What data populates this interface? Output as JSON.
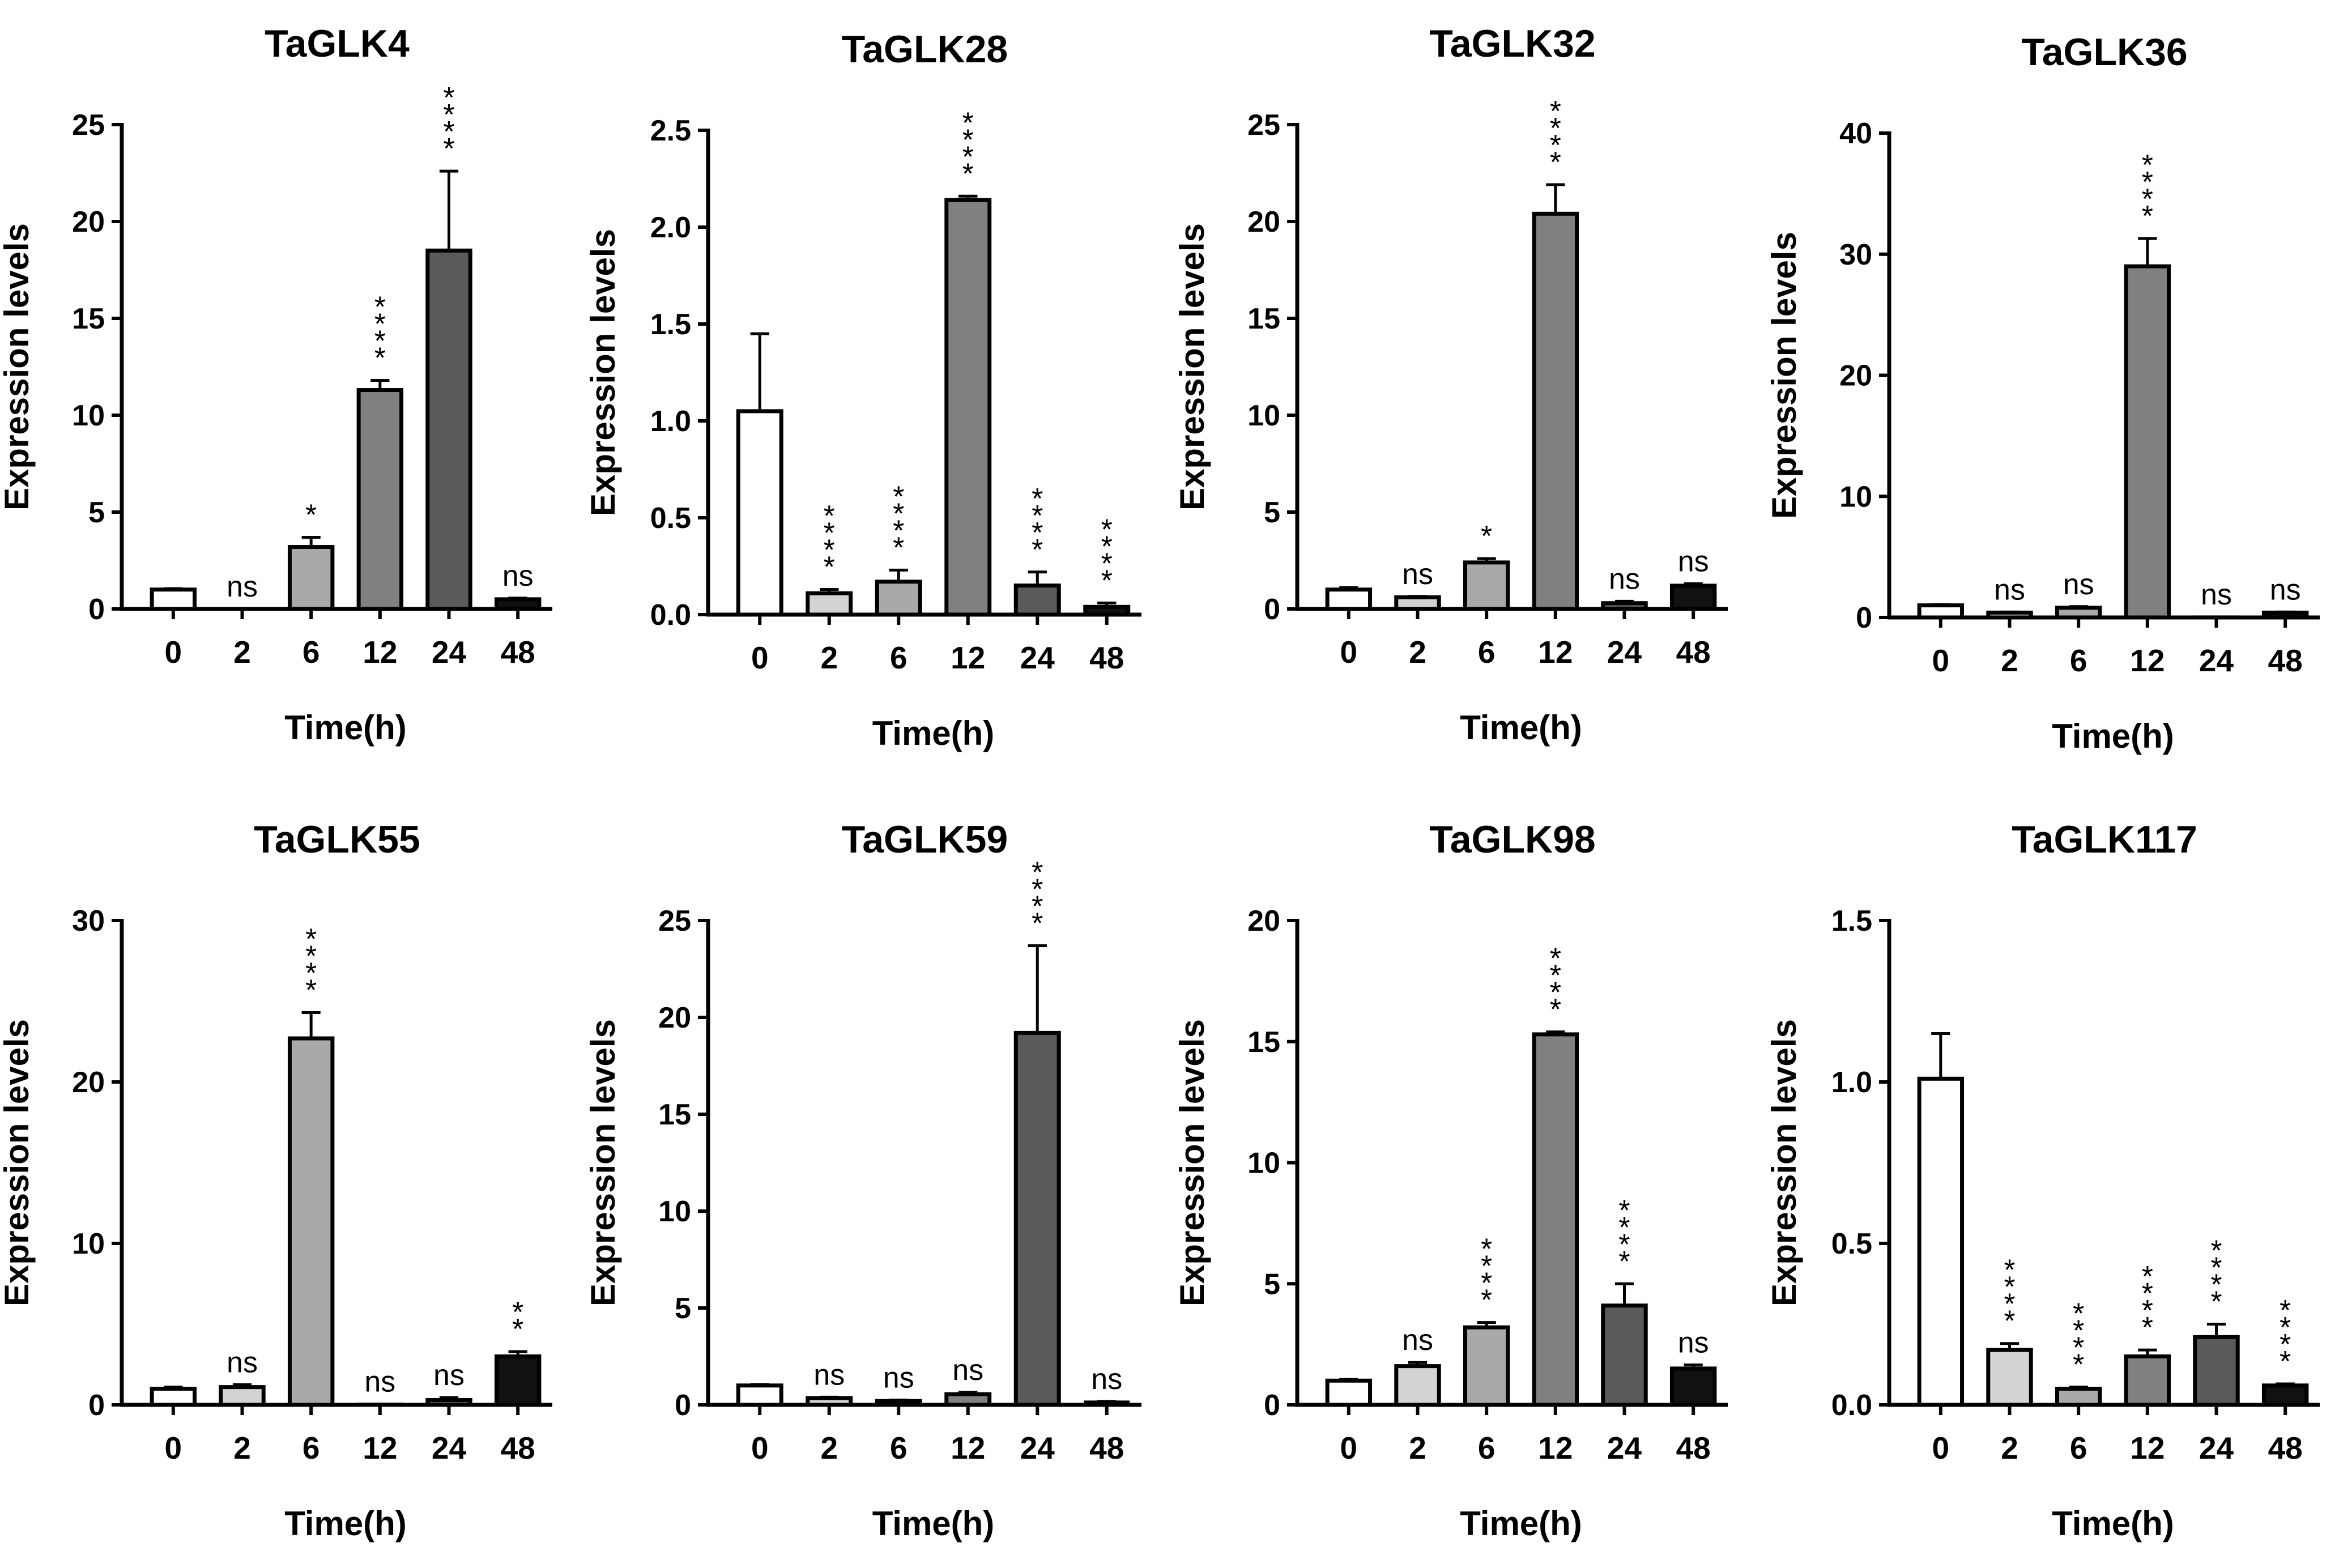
{
  "figure": {
    "xlabel": "Time(h)",
    "ylabel": "Expression levels",
    "categories": [
      "0",
      "2",
      "6",
      "12",
      "24",
      "48"
    ],
    "colors": {
      "axis": "#000000",
      "text": "#000000",
      "bars": [
        "#ffffff",
        "#d3d3d3",
        "#a9a9a9",
        "#808080",
        "#5a5a5a",
        "#111111"
      ]
    }
  },
  "chart_data": [
    {
      "type": "bar",
      "title": "TaGLK4",
      "xlabel": "Time(h)",
      "ylabel": "Expression levels",
      "ylim": [
        0,
        25
      ],
      "yticks": [
        "0",
        "5",
        "10",
        "15",
        "20",
        "25"
      ],
      "categories": [
        "0",
        "2",
        "6",
        "12",
        "24",
        "48"
      ],
      "values": [
        1.0,
        0.0,
        3.2,
        11.3,
        18.5,
        0.5
      ],
      "errors": [
        0.05,
        0,
        0.5,
        0.5,
        4.1,
        0.06
      ],
      "annotations": [
        "",
        "ns",
        "*",
        "****",
        "****",
        "ns"
      ]
    },
    {
      "type": "bar",
      "title": "TaGLK28",
      "xlabel": "Time(h)",
      "ylabel": "Expression levels",
      "ylim": [
        0,
        2.5
      ],
      "yticks": [
        "0.0",
        "0.5",
        "1.0",
        "1.5",
        "2.0",
        "2.5"
      ],
      "categories": [
        "0",
        "2",
        "6",
        "12",
        "24",
        "48"
      ],
      "values": [
        1.05,
        0.11,
        0.17,
        2.14,
        0.15,
        0.04
      ],
      "errors": [
        0.4,
        0.02,
        0.06,
        0.02,
        0.07,
        0.02
      ],
      "annotations": [
        "",
        "****",
        "****",
        "****",
        "****",
        "****"
      ]
    },
    {
      "type": "bar",
      "title": "TaGLK32",
      "xlabel": "Time(h)",
      "ylabel": "Expression levels",
      "ylim": [
        0,
        25
      ],
      "yticks": [
        "0",
        "5",
        "10",
        "15",
        "20",
        "25"
      ],
      "categories": [
        "0",
        "2",
        "6",
        "12",
        "24",
        "48"
      ],
      "values": [
        1.0,
        0.6,
        2.4,
        20.4,
        0.3,
        1.2
      ],
      "errors": [
        0.1,
        0.05,
        0.2,
        1.5,
        0.1,
        0.1
      ],
      "annotations": [
        "",
        "ns",
        "*",
        "****",
        "ns",
        "ns"
      ]
    },
    {
      "type": "bar",
      "title": "TaGLK36",
      "xlabel": "Time(h)",
      "ylabel": "Expression levels",
      "ylim": [
        0,
        40
      ],
      "yticks": [
        "0",
        "10",
        "20",
        "30",
        "40"
      ],
      "categories": [
        "0",
        "2",
        "6",
        "12",
        "24",
        "48"
      ],
      "values": [
        1.0,
        0.4,
        0.8,
        29.0,
        0.05,
        0.4
      ],
      "errors": [
        0.05,
        0.05,
        0.1,
        2.3,
        0,
        0.05
      ],
      "annotations": [
        "",
        "ns",
        "ns",
        "****",
        "ns",
        "ns"
      ]
    },
    {
      "type": "bar",
      "title": "TaGLK55",
      "xlabel": "Time(h)",
      "ylabel": "Expression levels",
      "ylim": [
        0,
        30
      ],
      "yticks": [
        "0",
        "10",
        "20",
        "30"
      ],
      "categories": [
        "0",
        "2",
        "6",
        "12",
        "24",
        "48"
      ],
      "values": [
        1.0,
        1.1,
        22.7,
        0.05,
        0.3,
        3.0
      ],
      "errors": [
        0.1,
        0.15,
        1.6,
        0,
        0.15,
        0.3
      ],
      "annotations": [
        "",
        "ns",
        "****",
        "ns",
        "ns",
        "**"
      ]
    },
    {
      "type": "bar",
      "title": "TaGLK59",
      "xlabel": "Time(h)",
      "ylabel": "Expression levels",
      "ylim": [
        0,
        25
      ],
      "yticks": [
        "0",
        "5",
        "10",
        "15",
        "20",
        "25"
      ],
      "categories": [
        "0",
        "2",
        "6",
        "12",
        "24",
        "48"
      ],
      "values": [
        1.0,
        0.35,
        0.2,
        0.55,
        19.2,
        0.15
      ],
      "errors": [
        0.05,
        0.05,
        0.05,
        0.1,
        4.5,
        0.03
      ],
      "annotations": [
        "",
        "ns",
        "ns",
        "ns",
        "****",
        "ns"
      ]
    },
    {
      "type": "bar",
      "title": "TaGLK98",
      "xlabel": "Time(h)",
      "ylabel": "Expression levels",
      "ylim": [
        0,
        20
      ],
      "yticks": [
        "0",
        "5",
        "10",
        "15",
        "20"
      ],
      "categories": [
        "0",
        "2",
        "6",
        "12",
        "24",
        "48"
      ],
      "values": [
        1.0,
        1.6,
        3.2,
        15.3,
        4.1,
        1.5
      ],
      "errors": [
        0.05,
        0.15,
        0.2,
        0.1,
        0.9,
        0.15
      ],
      "annotations": [
        "",
        "ns",
        "****",
        "****",
        "****",
        "ns"
      ]
    },
    {
      "type": "bar",
      "title": "TaGLK117",
      "xlabel": "Time(h)",
      "ylabel": "Expression levels",
      "ylim": [
        0,
        1.5
      ],
      "yticks": [
        "0.0",
        "0.5",
        "1.0",
        "1.5"
      ],
      "categories": [
        "0",
        "2",
        "6",
        "12",
        "24",
        "48"
      ],
      "values": [
        1.01,
        0.17,
        0.05,
        0.15,
        0.21,
        0.06
      ],
      "errors": [
        0.14,
        0.02,
        0.005,
        0.02,
        0.04,
        0.005
      ],
      "annotations": [
        "",
        "****",
        "****",
        "****",
        "****",
        "****"
      ]
    }
  ]
}
